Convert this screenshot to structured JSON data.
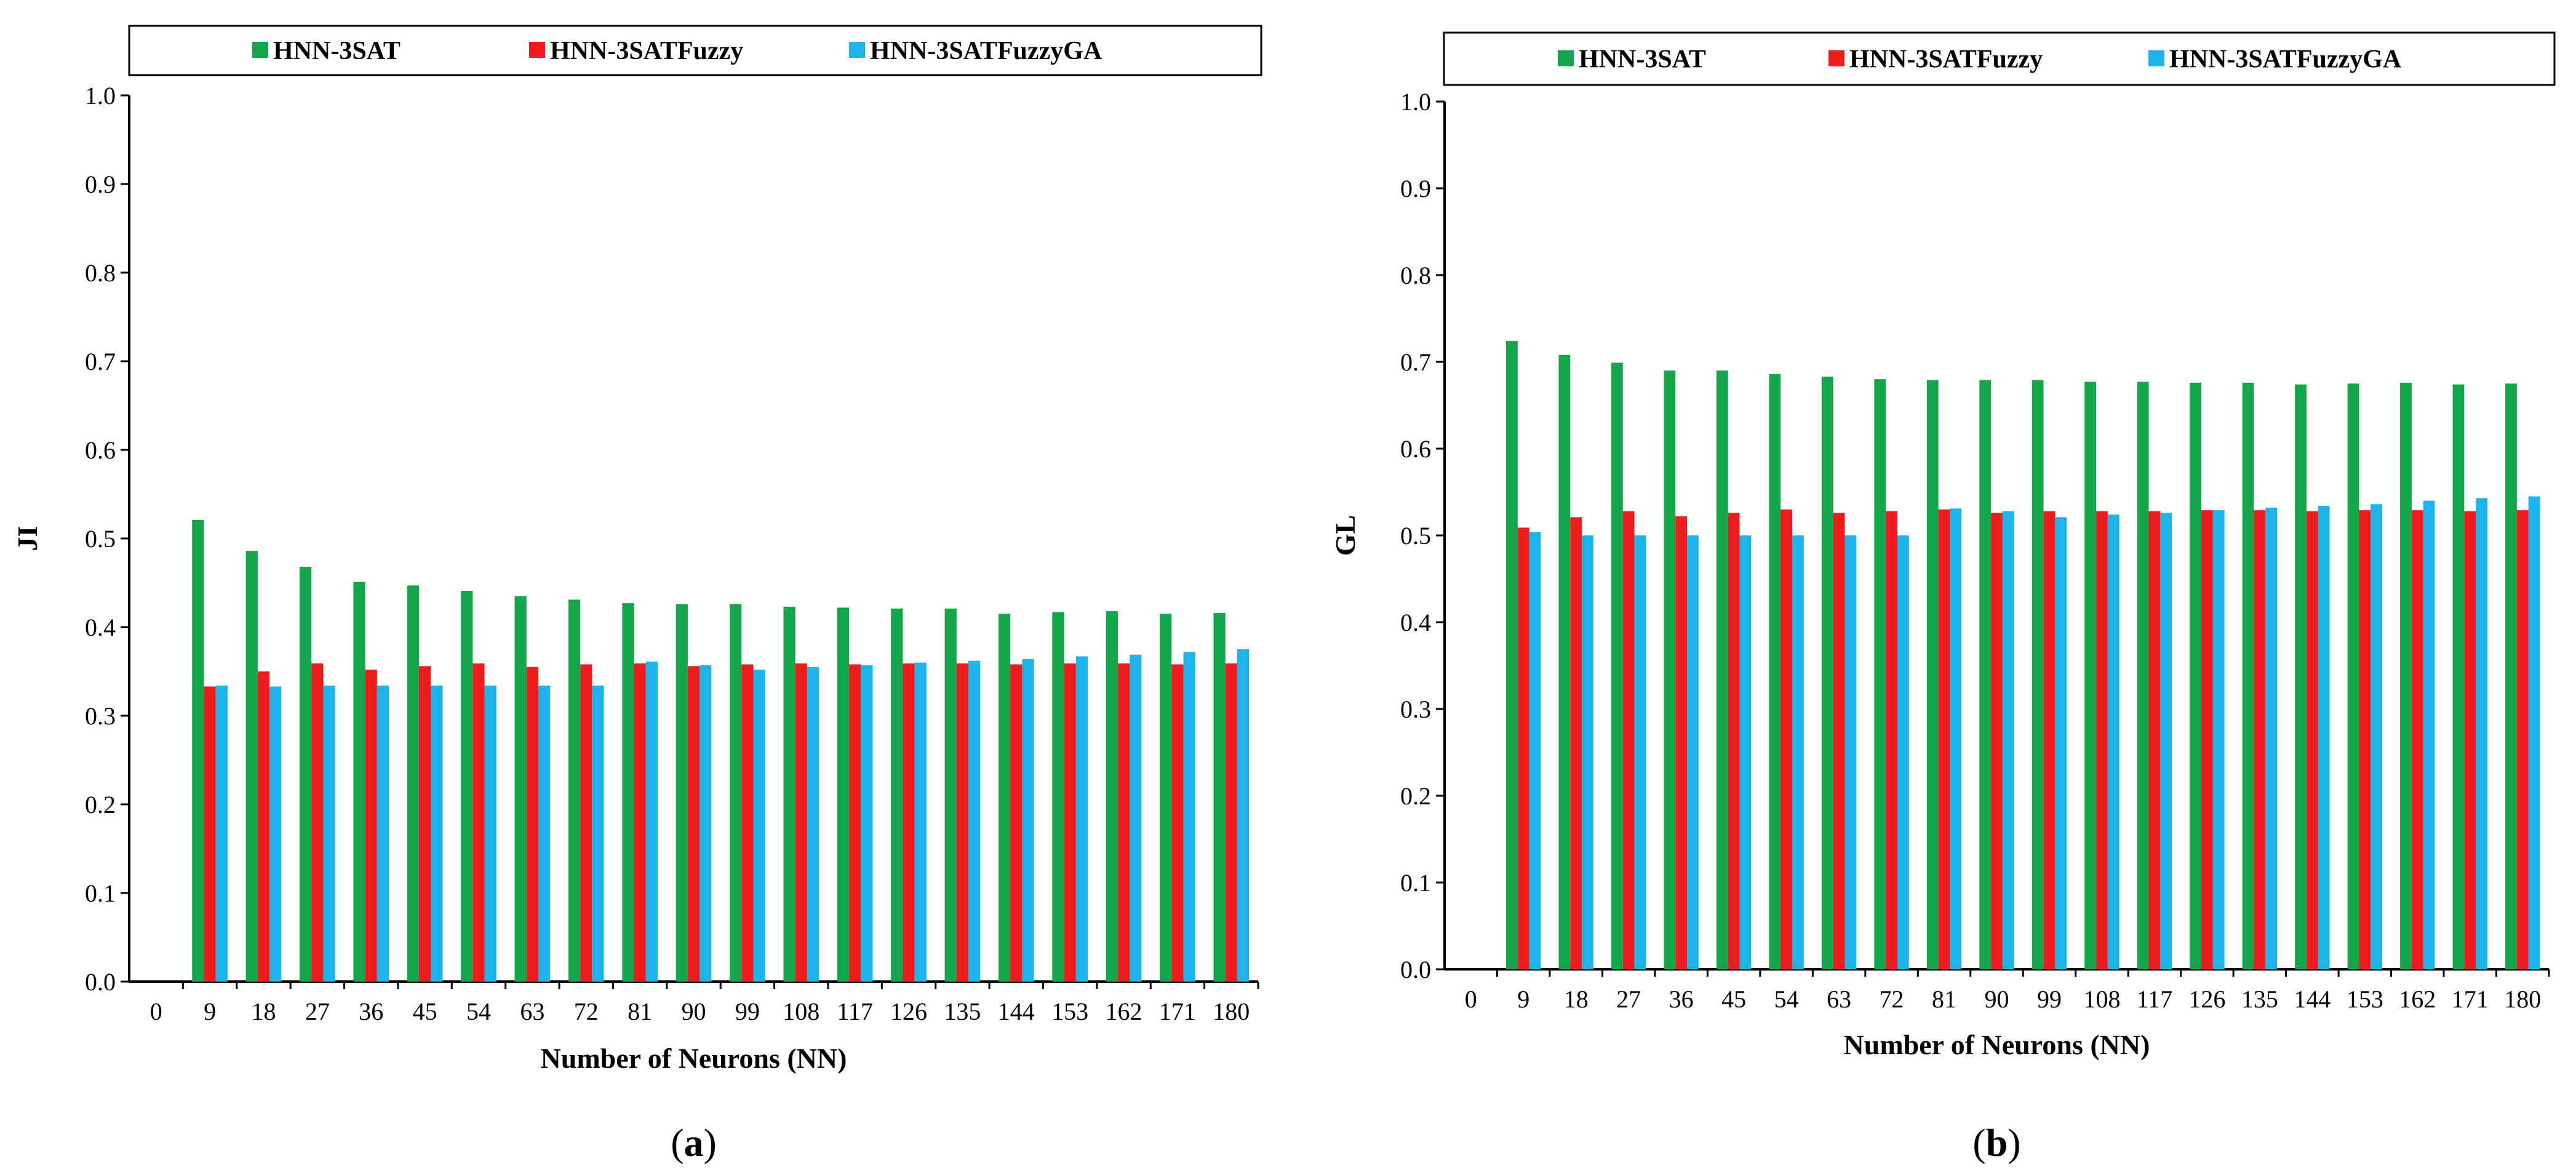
{
  "legend": {
    "series": [
      "HNN-3SAT",
      "HNN-3SATFuzzy",
      "HNN-3SATFuzzyGA"
    ]
  },
  "colors": {
    "HNN-3SAT": "#14a64a",
    "HNN-3SATFuzzy": "#ee1c1c",
    "HNN-3SATFuzzyGA": "#1cb4ea"
  },
  "chart_data": [
    {
      "type": "bar",
      "panel": "a",
      "caption_open": "(",
      "caption_letter": "a",
      "caption_close": ")",
      "ylabel": "JI",
      "xlabel": "Number of Neurons (NN)",
      "ylim": [
        0,
        1.0
      ],
      "yticks": [
        "0.0",
        "0.1",
        "0.2",
        "0.3",
        "0.4",
        "0.5",
        "0.6",
        "0.7",
        "0.8",
        "0.9",
        "1.0"
      ],
      "categories": [
        "0",
        "9",
        "18",
        "27",
        "36",
        "45",
        "54",
        "63",
        "72",
        "81",
        "90",
        "99",
        "108",
        "117",
        "126",
        "135",
        "144",
        "153",
        "162",
        "171",
        "180"
      ],
      "legend_position": "top",
      "grid": false,
      "series": [
        {
          "name": "HNN-3SAT",
          "values": [
            null,
            0.521,
            0.486,
            0.468,
            0.451,
            0.447,
            0.441,
            0.435,
            0.431,
            0.427,
            0.426,
            0.426,
            0.423,
            0.422,
            0.421,
            0.421,
            0.415,
            0.417,
            0.418,
            0.415,
            0.416
          ]
        },
        {
          "name": "HNN-3SATFuzzy",
          "values": [
            null,
            0.333,
            0.35,
            0.359,
            0.352,
            0.356,
            0.359,
            0.355,
            0.358,
            0.359,
            0.356,
            0.358,
            0.359,
            0.358,
            0.359,
            0.359,
            0.358,
            0.359,
            0.359,
            0.358,
            0.359
          ]
        },
        {
          "name": "HNN-3SATFuzzyGA",
          "values": [
            null,
            0.334,
            0.333,
            0.334,
            0.334,
            0.334,
            0.334,
            0.334,
            0.334,
            0.361,
            0.357,
            0.352,
            0.355,
            0.357,
            0.36,
            0.362,
            0.364,
            0.367,
            0.369,
            0.372,
            0.375
          ]
        }
      ]
    },
    {
      "type": "bar",
      "panel": "b",
      "caption_open": "(",
      "caption_letter": "b",
      "caption_close": ")",
      "ylabel": "GL",
      "xlabel": "Number of Neurons (NN)",
      "ylim": [
        0,
        1.0
      ],
      "yticks": [
        "0.0",
        "0.1",
        "0.2",
        "0.3",
        "0.4",
        "0.5",
        "0.6",
        "0.7",
        "0.8",
        "0.9",
        "1.0"
      ],
      "categories": [
        "0",
        "9",
        "18",
        "27",
        "36",
        "45",
        "54",
        "63",
        "72",
        "81",
        "90",
        "99",
        "108",
        "117",
        "126",
        "135",
        "144",
        "153",
        "162",
        "171",
        "180"
      ],
      "legend_position": "top",
      "grid": false,
      "series": [
        {
          "name": "HNN-3SAT",
          "values": [
            null,
            0.724,
            0.708,
            0.699,
            0.69,
            0.69,
            0.686,
            0.683,
            0.68,
            0.679,
            0.679,
            0.679,
            0.677,
            0.677,
            0.676,
            0.676,
            0.674,
            0.675,
            0.676,
            0.674,
            0.675
          ]
        },
        {
          "name": "HNN-3SATFuzzy",
          "values": [
            null,
            0.509,
            0.521,
            0.528,
            0.522,
            0.526,
            0.53,
            0.526,
            0.528,
            0.53,
            0.526,
            0.528,
            0.528,
            0.528,
            0.529,
            0.529,
            0.528,
            0.529,
            0.529,
            0.528,
            0.529
          ]
        },
        {
          "name": "HNN-3SATFuzzyGA",
          "values": [
            null,
            0.504,
            0.5,
            0.5,
            0.5,
            0.5,
            0.5,
            0.5,
            0.5,
            0.531,
            0.528,
            0.521,
            0.524,
            0.526,
            0.529,
            0.532,
            0.534,
            0.536,
            0.54,
            0.543,
            0.545
          ]
        }
      ]
    }
  ]
}
